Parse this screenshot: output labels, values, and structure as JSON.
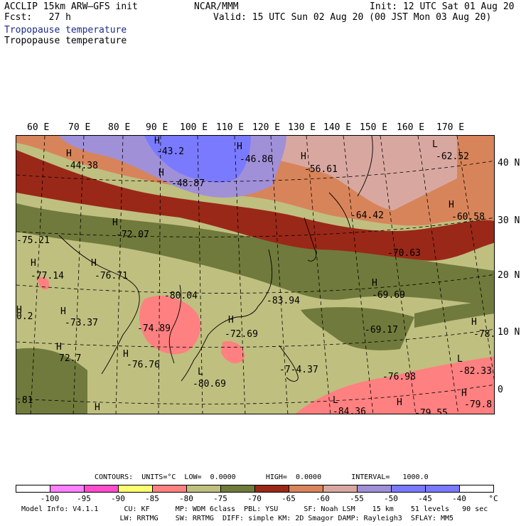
{
  "header": {
    "title_left": "ACCLIP 15km ARW–GFS init",
    "fcst": "Fcst:   27 h",
    "org": "NCAR/MMM",
    "init": "Init: 12 UTC Sat 01 Aug 20",
    "valid": "Valid: 15 UTC Sun 02 Aug 20 (00 JST Mon 03 Aug 20)",
    "field_1": "Tropopause temperature",
    "field_2": "Tropopause temperature"
  },
  "map": {
    "lon_labels": [
      "60 E",
      "70 E",
      "80 E",
      "90 E",
      "100 E",
      "110 E",
      "120 E",
      "130 E",
      "140 E",
      "150 E",
      "160 E",
      "170 E"
    ],
    "lat_labels": [
      "40 N",
      "30 N",
      "20 N",
      "10 N",
      "0"
    ],
    "annotations": [
      {
        "t": "H"
      },
      {
        "t": "-44.38"
      },
      {
        "t": "H"
      },
      {
        "t": "-43.2"
      },
      {
        "t": "H"
      },
      {
        "t": "-48.87"
      },
      {
        "t": "H"
      },
      {
        "t": "-46.86"
      },
      {
        "t": "H"
      },
      {
        "t": "-56.61"
      },
      {
        "t": "L"
      },
      {
        "t": "-62.52"
      },
      {
        "t": "-64.42"
      },
      {
        "t": "H"
      },
      {
        "t": "-60.58"
      },
      {
        "t": "H"
      },
      {
        "t": "-72.07"
      },
      {
        "t": "-75.21"
      },
      {
        "t": "-70.63"
      },
      {
        "t": "H"
      },
      {
        "t": "-77.14"
      },
      {
        "t": "H"
      },
      {
        "t": "-76.71"
      },
      {
        "t": "-80.04"
      },
      {
        "t": "H"
      },
      {
        "t": "-69.69"
      },
      {
        "t": "-83.94"
      },
      {
        "t": "H"
      },
      {
        "t": "0.2"
      },
      {
        "t": "H"
      },
      {
        "t": "-73.37"
      },
      {
        "t": "-74.89"
      },
      {
        "t": "H"
      },
      {
        "t": "-72.69"
      },
      {
        "t": "-69.17"
      },
      {
        "t": "H"
      },
      {
        "t": "-78."
      },
      {
        "t": "H"
      },
      {
        "t": "72.7"
      },
      {
        "t": "H"
      },
      {
        "t": "-76.76"
      },
      {
        "t": "-7-4.37"
      },
      {
        "t": "L"
      },
      {
        "t": "-82.33"
      },
      {
        "t": "L"
      },
      {
        "t": "-80.69"
      },
      {
        "t": "-76.98"
      },
      {
        "t": "H"
      },
      {
        "t": "-79.8"
      },
      {
        "t": "L"
      },
      {
        "t": "-84.36"
      },
      {
        "t": "H"
      },
      {
        "t": "-79.55"
      },
      {
        "t": ".81"
      },
      {
        "t": "H"
      }
    ]
  },
  "legend": {
    "contours_line": "CONTOURS:  UNITS=°C  LOW=  0.0000       HIGH=  0.0000       INTERVAL=   1000.0",
    "ticks": [
      "-100",
      "-95",
      "-90",
      "-85",
      "-80",
      "-75",
      "-70",
      "-65",
      "-60",
      "-55",
      "-50",
      "-45",
      "-40",
      "°C"
    ],
    "colors": [
      "#ffffff",
      "#ff80ff",
      "#ff4ccc",
      "#ffff70",
      "#ff8080",
      "#bfbf80",
      "#707a3c",
      "#9a2818",
      "#d8845a",
      "#d8a8a0",
      "#a090d8",
      "#7a7aff",
      "#7a7aff"
    ]
  },
  "footer": {
    "line1": "Model Info: V4.1.1      CU: KF      MP: WDM 6class  PBL: YSU      SF: Noah LSM    15 km    51 levels   90 sec",
    "line2": "                       LW: RRTMG    SW: RRTMG  DIFF: simple KM: 2D Smagor DAMP: Rayleigh3  SFLAY: MM5"
  }
}
